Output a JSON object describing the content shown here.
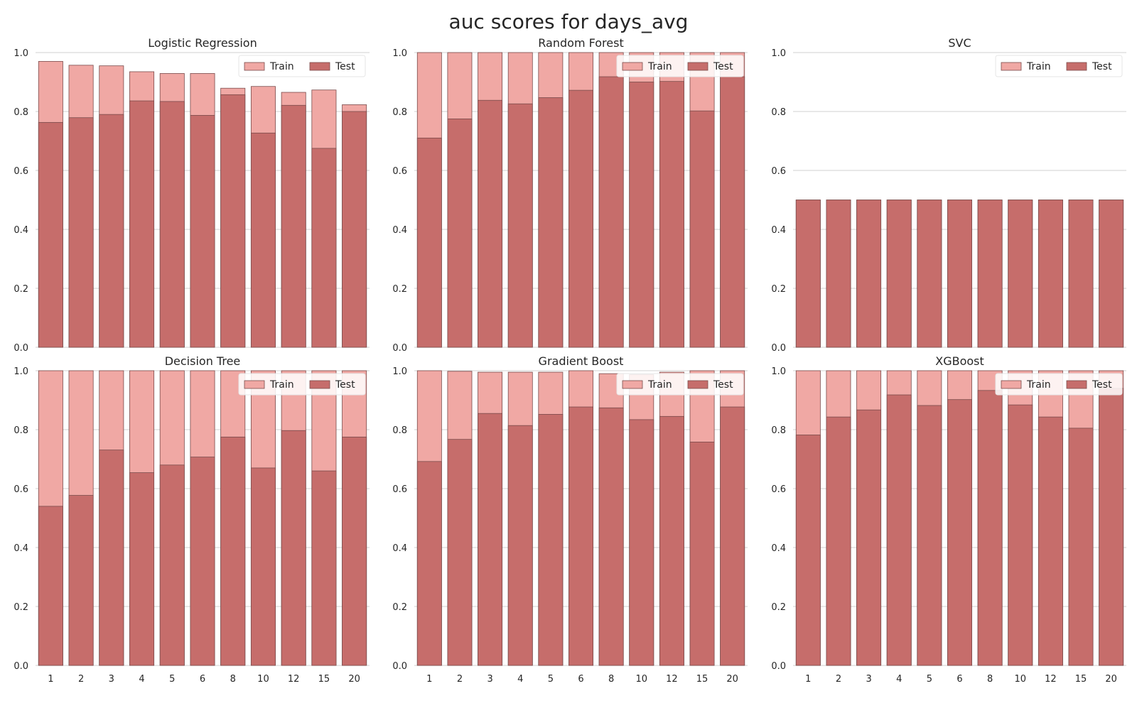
{
  "figure": {
    "title": "auc scores for days_avg"
  },
  "chart_data": [
    {
      "type": "bar",
      "title": "Logistic Regression",
      "categories": [
        "1",
        "2",
        "3",
        "4",
        "5",
        "6",
        "8",
        "10",
        "12",
        "15",
        "20"
      ],
      "series": [
        {
          "name": "Train",
          "values": [
            0.97,
            0.957,
            0.955,
            0.935,
            0.929,
            0.929,
            0.879,
            0.885,
            0.865,
            0.873,
            0.823
          ]
        },
        {
          "name": "Test",
          "values": [
            0.763,
            0.779,
            0.79,
            0.836,
            0.834,
            0.787,
            0.857,
            0.727,
            0.821,
            0.675,
            0.8
          ]
        }
      ],
      "ylim": [
        0,
        1.0
      ],
      "yticks": [
        "0.0",
        "0.2",
        "0.4",
        "0.6",
        "0.8",
        "1.0"
      ],
      "show_x_ticks": false,
      "legend": "top-right",
      "grid": true
    },
    {
      "type": "bar",
      "title": "Random Forest",
      "categories": [
        "1",
        "2",
        "3",
        "4",
        "5",
        "6",
        "8",
        "10",
        "12",
        "15",
        "20"
      ],
      "series": [
        {
          "name": "Train",
          "values": [
            1.0,
            1.0,
            1.0,
            1.0,
            1.0,
            1.0,
            1.0,
            1.0,
            1.0,
            1.0,
            1.0
          ]
        },
        {
          "name": "Test",
          "values": [
            0.71,
            0.775,
            0.838,
            0.826,
            0.847,
            0.872,
            0.918,
            0.9,
            0.902,
            0.802,
            0.918
          ]
        }
      ],
      "ylim": [
        0,
        1.0
      ],
      "yticks": [
        "0.0",
        "0.2",
        "0.4",
        "0.6",
        "0.8",
        "1.0"
      ],
      "show_x_ticks": false,
      "legend": "top-right",
      "grid": true
    },
    {
      "type": "bar",
      "title": "SVC",
      "categories": [
        "1",
        "2",
        "3",
        "4",
        "5",
        "6",
        "8",
        "10",
        "12",
        "15",
        "20"
      ],
      "series": [
        {
          "name": "Train",
          "values": [
            0.5,
            0.5,
            0.5,
            0.5,
            0.5,
            0.5,
            0.5,
            0.5,
            0.5,
            0.5,
            0.5
          ]
        },
        {
          "name": "Test",
          "values": [
            0.5,
            0.5,
            0.5,
            0.5,
            0.5,
            0.5,
            0.5,
            0.5,
            0.5,
            0.5,
            0.5
          ]
        }
      ],
      "ylim": [
        0,
        1.0
      ],
      "yticks": [
        "0.0",
        "0.2",
        "0.4",
        "0.6",
        "0.8",
        "1.0"
      ],
      "show_x_ticks": false,
      "legend": "top-right",
      "grid": true
    },
    {
      "type": "bar",
      "title": "Decision Tree",
      "categories": [
        "1",
        "2",
        "3",
        "4",
        "5",
        "6",
        "8",
        "10",
        "12",
        "15",
        "20"
      ],
      "series": [
        {
          "name": "Train",
          "values": [
            1.0,
            1.0,
            1.0,
            1.0,
            1.0,
            1.0,
            1.0,
            1.0,
            1.0,
            1.0,
            1.0
          ]
        },
        {
          "name": "Test",
          "values": [
            0.54,
            0.577,
            0.731,
            0.654,
            0.68,
            0.707,
            0.775,
            0.67,
            0.797,
            0.66,
            0.775
          ]
        }
      ],
      "ylim": [
        0,
        1.0
      ],
      "yticks": [
        "0.0",
        "0.2",
        "0.4",
        "0.6",
        "0.8",
        "1.0"
      ],
      "show_x_ticks": true,
      "legend": "top-right",
      "grid": true
    },
    {
      "type": "bar",
      "title": "Gradient Boost",
      "categories": [
        "1",
        "2",
        "3",
        "4",
        "5",
        "6",
        "8",
        "10",
        "12",
        "15",
        "20"
      ],
      "series": [
        {
          "name": "Train",
          "values": [
            1.0,
            0.998,
            0.995,
            0.995,
            0.995,
            1.0,
            0.99,
            0.987,
            0.995,
            1.0,
            1.0
          ]
        },
        {
          "name": "Test",
          "values": [
            0.692,
            0.767,
            0.855,
            0.814,
            0.852,
            0.877,
            0.874,
            0.834,
            0.845,
            0.758,
            0.877
          ]
        }
      ],
      "ylim": [
        0,
        1.0
      ],
      "yticks": [
        "0.0",
        "0.2",
        "0.4",
        "0.6",
        "0.8",
        "1.0"
      ],
      "show_x_ticks": true,
      "legend": "top-right",
      "grid": true
    },
    {
      "type": "bar",
      "title": "XGBoost",
      "categories": [
        "1",
        "2",
        "3",
        "4",
        "5",
        "6",
        "8",
        "10",
        "12",
        "15",
        "20"
      ],
      "series": [
        {
          "name": "Train",
          "values": [
            1.0,
            1.0,
            1.0,
            1.0,
            1.0,
            1.0,
            1.0,
            1.0,
            1.0,
            1.0,
            1.0
          ]
        },
        {
          "name": "Test",
          "values": [
            0.782,
            0.843,
            0.867,
            0.918,
            0.882,
            0.902,
            0.933,
            0.884,
            0.843,
            0.805,
            0.94
          ]
        }
      ],
      "ylim": [
        0,
        1.0
      ],
      "yticks": [
        "0.0",
        "0.2",
        "0.4",
        "0.6",
        "0.8",
        "1.0"
      ],
      "show_x_ticks": true,
      "legend": "top-right",
      "grid": true
    }
  ],
  "colors": {
    "train": "#f0a8a4",
    "test": "#c66d6b",
    "bar_edge": "#7a4b4b",
    "grid": "#d0d0d0",
    "text": "#262626"
  }
}
